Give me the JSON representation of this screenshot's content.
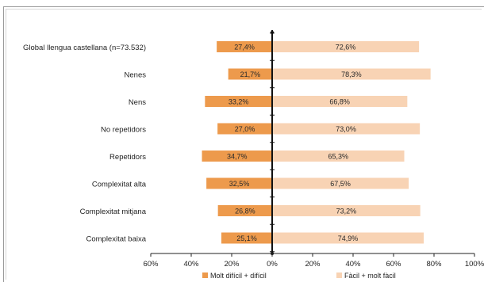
{
  "chart_data": {
    "type": "bar",
    "orientation": "horizontal-diverging",
    "categories": [
      "Global llengua castellana (n=73.532)",
      "Nenes",
      "Nens",
      "No repetidors",
      "Repetidors",
      "Complexitat alta",
      "Complexitat mitjana",
      "Complexitat baixa"
    ],
    "series": [
      {
        "name": "Molt difícil + difícil",
        "direction": "left",
        "color": "#ed9a4c",
        "values": [
          27.4,
          21.7,
          33.2,
          27.0,
          34.7,
          32.5,
          26.8,
          25.1
        ],
        "labels": [
          "27,4%",
          "21,7%",
          "33,2%",
          "27,0%",
          "34,7%",
          "32,5%",
          "26,8%",
          "25,1%"
        ]
      },
      {
        "name": "Fàcil + molt fàcil",
        "direction": "right",
        "color": "#f8d3b4",
        "values": [
          72.6,
          78.3,
          66.8,
          73.0,
          65.3,
          67.5,
          73.2,
          74.9
        ],
        "labels": [
          "72,6%",
          "78,3%",
          "66,8%",
          "73,0%",
          "65,3%",
          "67,5%",
          "73,2%",
          "74,9%"
        ]
      }
    ],
    "xlim": [
      -60,
      100
    ],
    "x_ticks": [
      -60,
      -40,
      -20,
      0,
      20,
      40,
      60,
      80,
      100
    ],
    "x_tick_labels": [
      "60%",
      "40%",
      "20%",
      "0%",
      "20%",
      "40%",
      "60%",
      "80%",
      "100%"
    ],
    "grid": false,
    "legend_position": "bottom",
    "title": "",
    "xlabel": "",
    "ylabel": ""
  }
}
